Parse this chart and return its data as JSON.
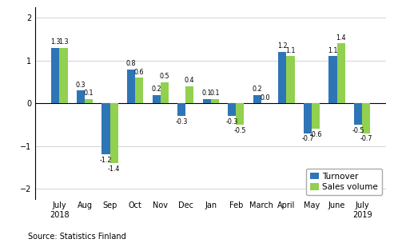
{
  "categories": [
    "July\n2018",
    "Aug",
    "Sep",
    "Oct",
    "Nov",
    "Dec",
    "Jan",
    "Feb",
    "March",
    "April",
    "May",
    "June",
    "July\n2019"
  ],
  "turnover": [
    1.3,
    0.3,
    -1.2,
    0.8,
    0.2,
    -0.3,
    0.1,
    -0.3,
    0.2,
    1.2,
    -0.7,
    1.1,
    -0.5
  ],
  "sales_volume": [
    1.3,
    0.1,
    -1.4,
    0.6,
    0.5,
    0.4,
    0.1,
    -0.5,
    0.0,
    1.1,
    -0.6,
    1.4,
    -0.7
  ],
  "turnover_color": "#2E75B6",
  "sales_color": "#92D050",
  "ylim": [
    -2.25,
    2.25
  ],
  "yticks": [
    -2,
    -1,
    0,
    1,
    2
  ],
  "legend_labels": [
    "Turnover",
    "Sales volume"
  ],
  "source_text": "Source: Statistics Finland",
  "bar_width": 0.32,
  "label_fontsize": 5.8,
  "axis_fontsize": 7.0,
  "source_fontsize": 7.0,
  "legend_fontsize": 7.5
}
